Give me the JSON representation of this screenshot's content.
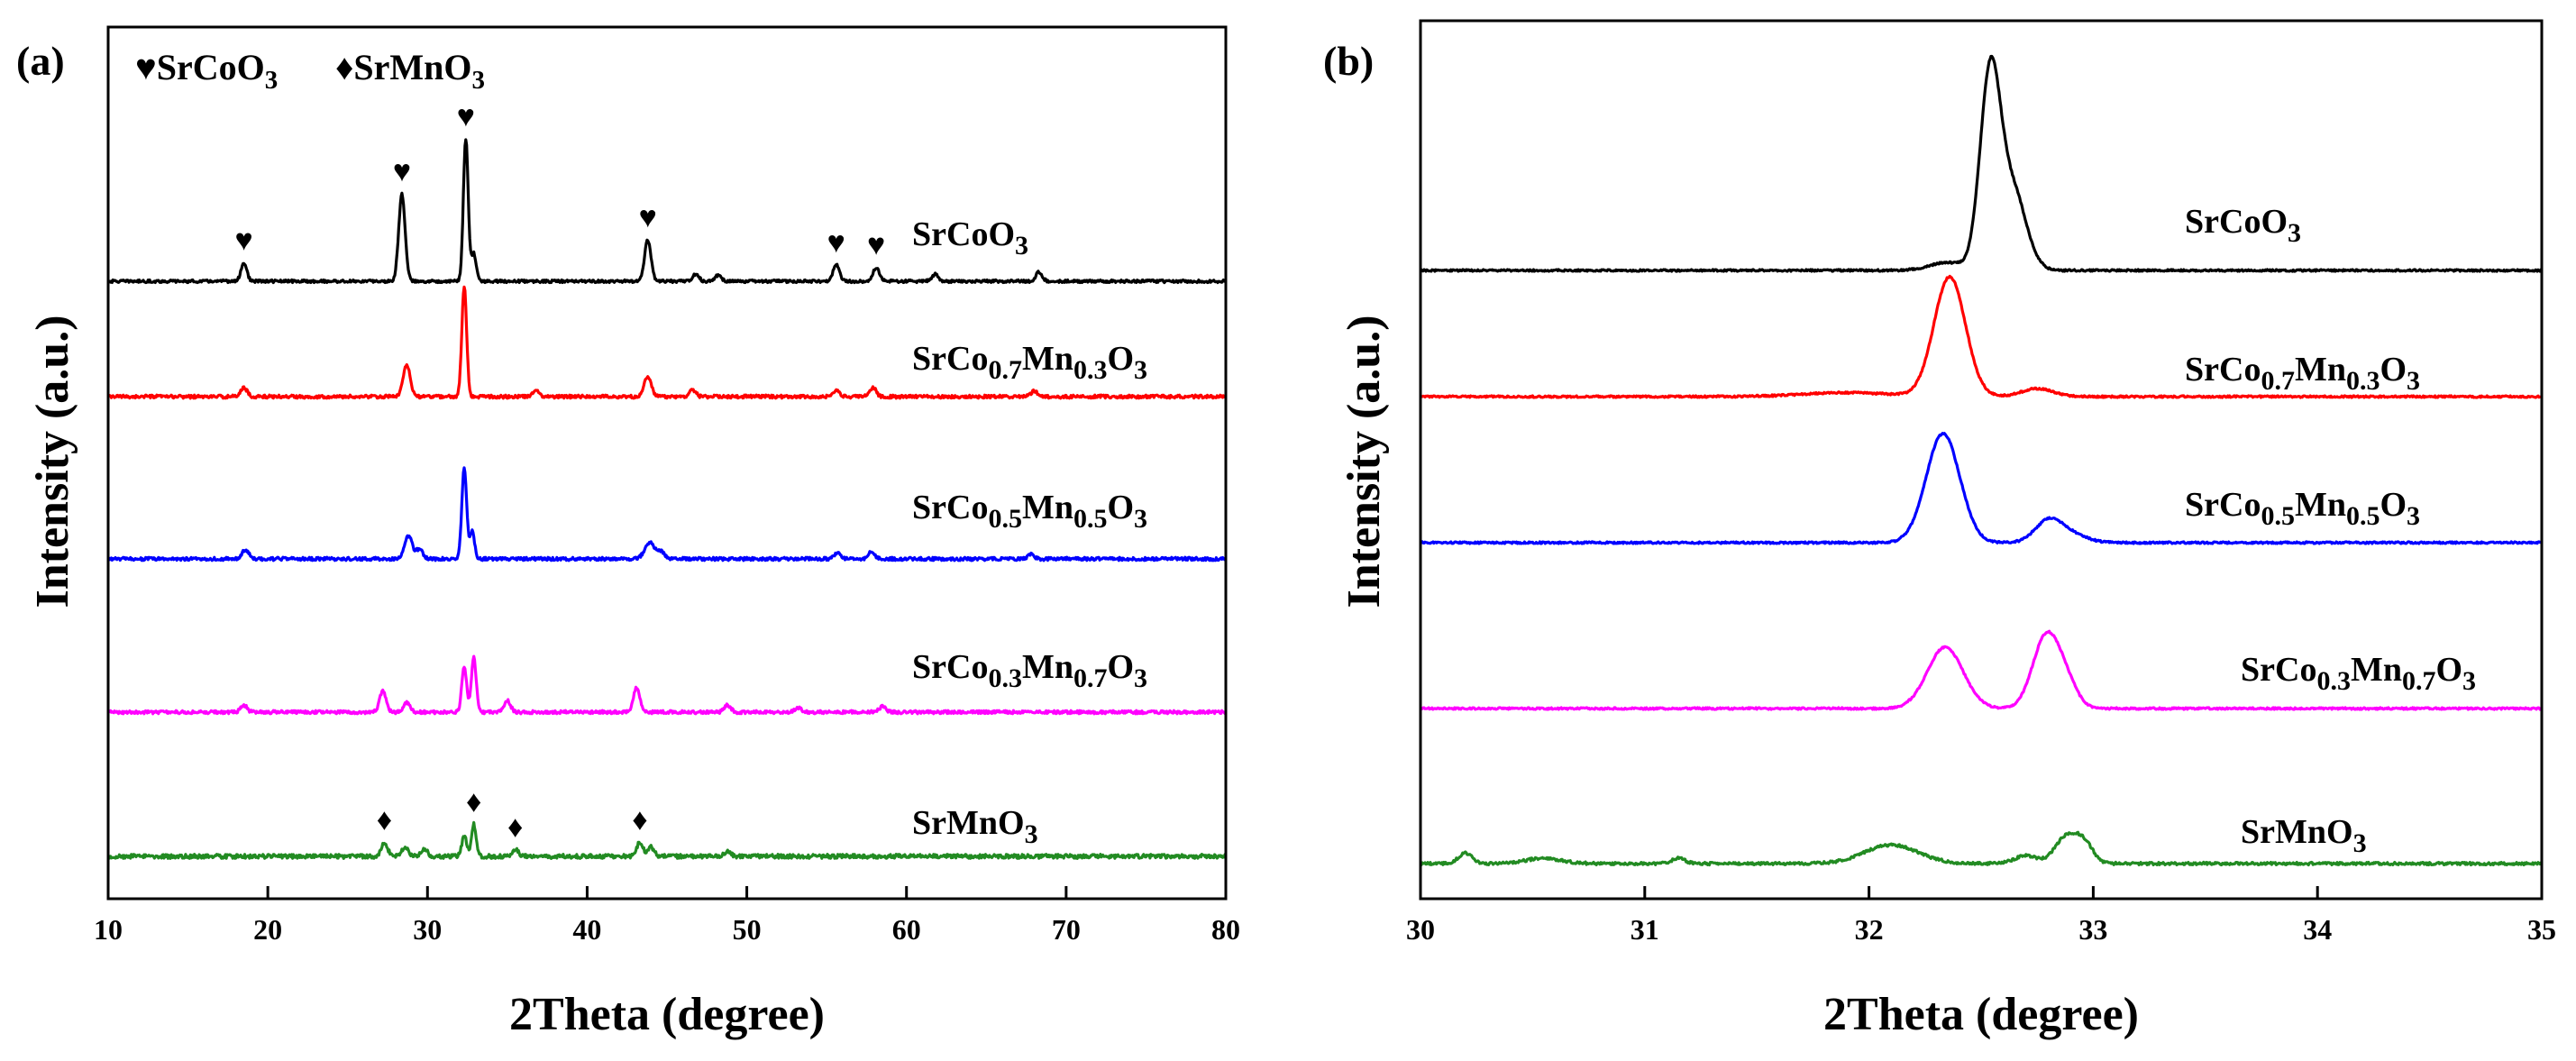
{
  "chart_data": [
    {
      "type": "line",
      "panel_label": "(a)",
      "xlabel": "2Theta (degree)",
      "ylabel": "Intensity (a.u.)",
      "xlim": [
        10,
        80
      ],
      "xticks": [
        "10",
        "20",
        "30",
        "40",
        "50",
        "60",
        "70",
        "80"
      ],
      "legend": [
        {
          "symbol": "♥",
          "formula": "SrCoO",
          "subscript": "3"
        },
        {
          "symbol": "♦",
          "formula": "SrMnO",
          "subscript": "3"
        }
      ],
      "series": [
        {
          "name": "SrCoO3",
          "color": "#000000",
          "label": [
            "SrCoO",
            "3",
            ""
          ],
          "baseline": 0.0,
          "noise": 0.6,
          "peaks": [
            [
              18.5,
              8,
              0.18
            ],
            [
              28.4,
              38,
              0.2
            ],
            [
              32.4,
              62,
              0.15
            ],
            [
              32.9,
              12,
              0.15
            ],
            [
              43.8,
              18,
              0.2
            ],
            [
              46.8,
              3,
              0.2
            ],
            [
              48.2,
              2.5,
              0.2
            ],
            [
              55.6,
              7,
              0.2
            ],
            [
              58.1,
              6,
              0.2
            ],
            [
              61.8,
              3,
              0.2
            ],
            [
              68.3,
              4,
              0.2
            ]
          ]
        },
        {
          "name": "SrCo0.7Mn0.3O3",
          "color": "#ff0000",
          "label": [
            "SrCo",
            "0.7",
            "Mn",
            "0.3",
            "O",
            "3"
          ],
          "baseline": 0.0,
          "noise": 0.7,
          "peaks": [
            [
              18.5,
              4,
              0.2
            ],
            [
              28.7,
              14,
              0.22
            ],
            [
              32.3,
              48,
              0.15
            ],
            [
              36.8,
              3,
              0.2
            ],
            [
              43.8,
              9,
              0.22
            ],
            [
              46.6,
              3,
              0.2
            ],
            [
              55.6,
              3,
              0.2
            ],
            [
              57.9,
              4,
              0.2
            ],
            [
              68.0,
              2.5,
              0.2
            ]
          ]
        },
        {
          "name": "SrCo0.5Mn0.5O3",
          "color": "#0000ff",
          "label": [
            "SrCo",
            "0.5",
            "Mn",
            "0.5",
            "O",
            "3"
          ],
          "baseline": 0.0,
          "noise": 0.7,
          "peaks": [
            [
              18.6,
              4,
              0.2
            ],
            [
              28.8,
              10,
              0.25
            ],
            [
              29.5,
              4,
              0.2
            ],
            [
              32.3,
              40,
              0.15
            ],
            [
              32.8,
              12,
              0.15
            ],
            [
              43.9,
              7,
              0.3
            ],
            [
              44.6,
              3,
              0.25
            ],
            [
              55.7,
              2.5,
              0.2
            ],
            [
              57.8,
              3,
              0.2
            ],
            [
              67.8,
              2,
              0.2
            ]
          ]
        },
        {
          "name": "SrCo0.3Mn0.7O3",
          "color": "#ff00ff",
          "label": [
            "SrCo",
            "0.3",
            "Mn",
            "0.7",
            "O",
            "3"
          ],
          "baseline": 0.0,
          "noise": 0.7,
          "peaks": [
            [
              18.5,
              3,
              0.2
            ],
            [
              27.2,
              9,
              0.2
            ],
            [
              28.7,
              4,
              0.2
            ],
            [
              32.3,
              20,
              0.15
            ],
            [
              32.9,
              24,
              0.15
            ],
            [
              35.0,
              5,
              0.2
            ],
            [
              43.1,
              11,
              0.2
            ],
            [
              48.8,
              3,
              0.2
            ],
            [
              53.2,
              2,
              0.2
            ],
            [
              58.5,
              2.5,
              0.2
            ]
          ]
        },
        {
          "name": "SrMnO3",
          "color": "#228b22",
          "label": [
            "SrMnO",
            "3",
            ""
          ],
          "baseline": 0.0,
          "noise": 0.9,
          "peaks": [
            [
              27.3,
              6,
              0.2
            ],
            [
              28.6,
              4,
              0.2
            ],
            [
              29.8,
              3,
              0.2
            ],
            [
              32.3,
              9,
              0.15
            ],
            [
              32.9,
              14,
              0.15
            ],
            [
              35.5,
              3,
              0.2
            ],
            [
              43.3,
              6,
              0.2
            ],
            [
              44.0,
              4,
              0.2
            ],
            [
              48.8,
              2,
              0.2
            ]
          ]
        }
      ],
      "markers": [
        {
          "symbol": "♥",
          "x": [
            18.5,
            28.4,
            32.4,
            43.8,
            55.6,
            58.1
          ],
          "series": 0
        },
        {
          "symbol": "♦",
          "x": [
            27.3,
            32.9,
            35.5,
            43.3
          ],
          "series": 4
        }
      ]
    },
    {
      "type": "line",
      "panel_label": "(b)",
      "xlabel": "2Theta (degree)",
      "ylabel": "Intensity (a.u.)",
      "xlim": [
        30,
        35
      ],
      "xticks": [
        "30",
        "31",
        "32",
        "33",
        "34",
        "35"
      ],
      "series": [
        {
          "name": "SrCoO3",
          "color": "#000000",
          "label": [
            "SrCoO",
            "3",
            ""
          ],
          "noise": 0.35,
          "peaks": [
            [
              32.54,
              72,
              0.045
            ],
            [
              32.64,
              30,
              0.06
            ],
            [
              32.35,
              3,
              0.08
            ]
          ]
        },
        {
          "name": "SrCo0.7Mn0.3O3",
          "color": "#ff0000",
          "label": [
            "SrCo",
            "0.7",
            "Mn",
            "0.3",
            "O",
            "3"
          ],
          "noise": 0.35,
          "peaks": [
            [
              32.36,
              45,
              0.07
            ],
            [
              32.75,
              3,
              0.07
            ],
            [
              31.9,
              1.5,
              0.2
            ]
          ]
        },
        {
          "name": "SrCo0.5Mn0.5O3",
          "color": "#0000ff",
          "label": [
            "SrCo",
            "0.5",
            "Mn",
            "0.5",
            "O",
            "3"
          ],
          "noise": 0.35,
          "peaks": [
            [
              32.33,
              41,
              0.075
            ],
            [
              32.8,
              8,
              0.06
            ],
            [
              32.9,
              3,
              0.07
            ]
          ]
        },
        {
          "name": "SrCo0.3Mn0.7O3",
          "color": "#ff00ff",
          "label": [
            "SrCo",
            "0.3",
            "Mn",
            "0.7",
            "O",
            "3"
          ],
          "noise": 0.35,
          "peaks": [
            [
              32.34,
              23,
              0.08
            ],
            [
              32.79,
              27,
              0.06
            ],
            [
              32.88,
              8,
              0.05
            ]
          ]
        },
        {
          "name": "SrMnO3",
          "color": "#228b22",
          "label": [
            "SrMnO",
            "3",
            ""
          ],
          "noise": 0.5,
          "peaks": [
            [
              30.2,
              4,
              0.03
            ],
            [
              30.55,
              2,
              0.08
            ],
            [
              31.15,
              2,
              0.03
            ],
            [
              32.1,
              7,
              0.12
            ],
            [
              32.7,
              3,
              0.05
            ],
            [
              32.88,
              10,
              0.05
            ],
            [
              32.96,
              7,
              0.04
            ]
          ]
        }
      ]
    }
  ]
}
